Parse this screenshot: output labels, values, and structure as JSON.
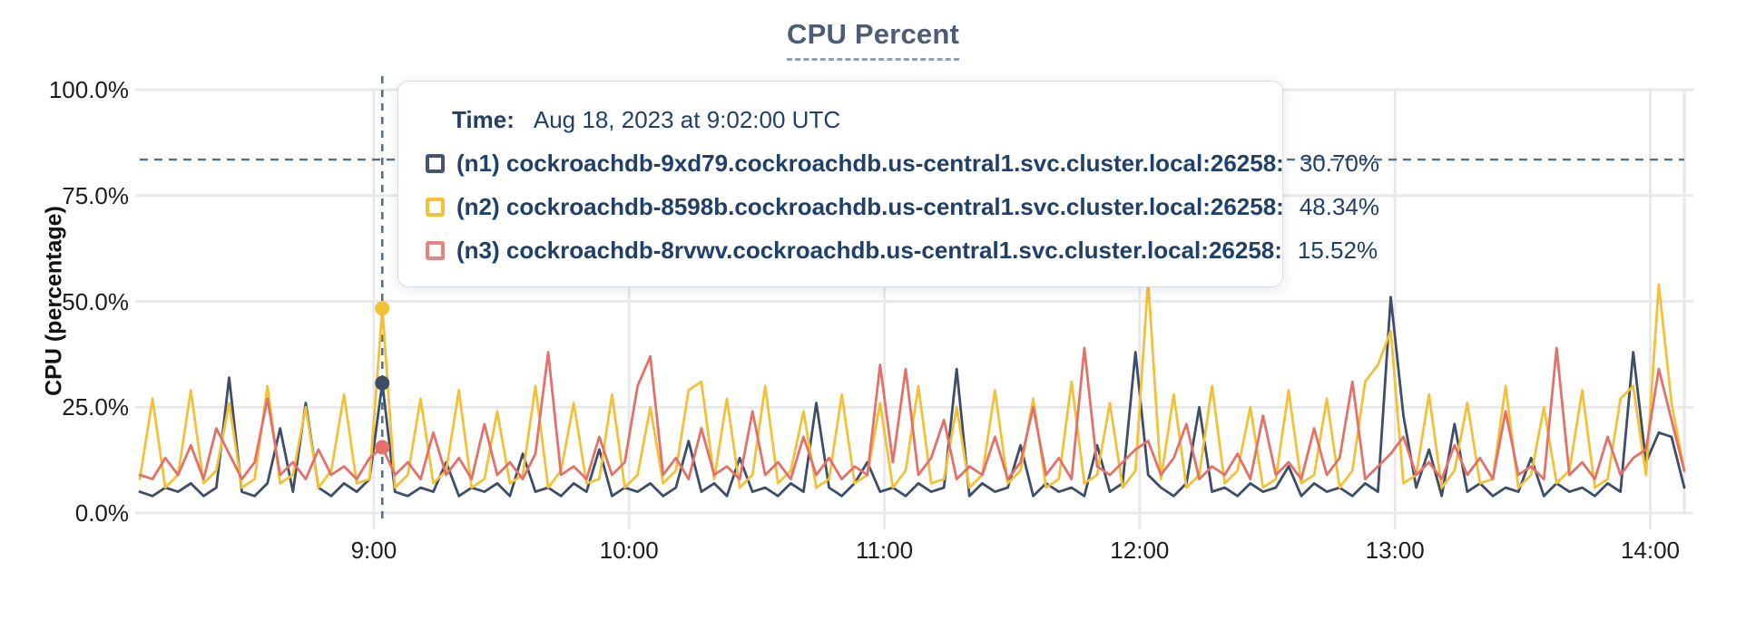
{
  "tooltip": {
    "time_label": "Time:",
    "time_value": "Aug 18, 2023 at 9:02:00 UTC"
  },
  "chart_data": {
    "type": "line",
    "title": "CPU Percent",
    "ylabel": "CPU (percentage)",
    "ylim": [
      0,
      100
    ],
    "grid": true,
    "legend_position": "tooltip-overlay",
    "grid_color": "#e8e9eb",
    "annotation_color": "#567087",
    "threshold_percent": 83.5,
    "x_start_min": 485,
    "x_step_min": 3,
    "cursor": {
      "time_min": 542,
      "time_text": "9:02:00"
    },
    "yticks": [
      {
        "value": 0,
        "label": "0.0%"
      },
      {
        "value": 25,
        "label": "25.0%"
      },
      {
        "value": 50,
        "label": "50.0%"
      },
      {
        "value": 75,
        "label": "75.0%"
      },
      {
        "value": 100,
        "label": "100.0%"
      }
    ],
    "xticks": [
      {
        "min": 540,
        "label": "9:00"
      },
      {
        "min": 600,
        "label": "10:00"
      },
      {
        "min": 660,
        "label": "11:00"
      },
      {
        "min": 720,
        "label": "12:00"
      },
      {
        "min": 780,
        "label": "13:00"
      },
      {
        "min": 840,
        "label": "14:00"
      }
    ],
    "series": [
      {
        "id": "n1",
        "color": "#3e4d68",
        "swatch_color": "#45546f",
        "legend_label": "(n1) cockroachdb-9xd79.cockroachdb.us-central1.svc.cluster.local:26258:",
        "cursor_value": 30.7,
        "cursor_value_label": "30.70%",
        "values": [
          5,
          4,
          6,
          5,
          7,
          4,
          6,
          32,
          5,
          4,
          7,
          20,
          5,
          26,
          6,
          4,
          7,
          5,
          8,
          30.7,
          5,
          4,
          6,
          5,
          12,
          4,
          6,
          5,
          7,
          4,
          14,
          5,
          6,
          4,
          7,
          5,
          15,
          4,
          6,
          5,
          7,
          4,
          6,
          17,
          5,
          7,
          4,
          13,
          5,
          6,
          4,
          7,
          5,
          26,
          6,
          4,
          7,
          12,
          5,
          6,
          4,
          7,
          5,
          6,
          34,
          4,
          7,
          5,
          6,
          16,
          4,
          7,
          5,
          6,
          4,
          16,
          5,
          7,
          38,
          9,
          6,
          4,
          7,
          25,
          5,
          6,
          4,
          7,
          5,
          6,
          11,
          4,
          7,
          5,
          6,
          4,
          7,
          5,
          51,
          23,
          6,
          15,
          4,
          21,
          5,
          7,
          4,
          6,
          5,
          13,
          4,
          7,
          5,
          6,
          4,
          7,
          5,
          38,
          12,
          19,
          18,
          6
        ]
      },
      {
        "id": "n2",
        "color": "#f2c138",
        "swatch_color": "#f2c233",
        "legend_label": "(n2) cockroachdb-8598b.cockroachdb.us-central1.svc.cluster.local:26258:",
        "cursor_value": 48.34,
        "cursor_value_label": "48.34%",
        "values": [
          8,
          27,
          6,
          9,
          29,
          7,
          10,
          26,
          6,
          8,
          30,
          7,
          9,
          25,
          6,
          10,
          28,
          7,
          8,
          48.34,
          6,
          9,
          27,
          7,
          10,
          29,
          6,
          8,
          24,
          7,
          9,
          30,
          6,
          10,
          26,
          7,
          8,
          28,
          6,
          9,
          25,
          7,
          10,
          29,
          31,
          8,
          27,
          6,
          9,
          30,
          7,
          10,
          24,
          6,
          8,
          28,
          7,
          9,
          26,
          6,
          10,
          30,
          7,
          8,
          25,
          6,
          9,
          29,
          7,
          10,
          27,
          6,
          8,
          31,
          7,
          9,
          26,
          6,
          10,
          55,
          8,
          28,
          6,
          9,
          30,
          7,
          10,
          25,
          6,
          8,
          29,
          7,
          9,
          27,
          6,
          10,
          31,
          35,
          43,
          7,
          9,
          28,
          6,
          10,
          26,
          7,
          8,
          30,
          6,
          9,
          25,
          7,
          10,
          29,
          6,
          8,
          27,
          30,
          9,
          54,
          26,
          10
        ]
      },
      {
        "id": "n3",
        "color": "#e3716a",
        "swatch_color": "#e5837e",
        "legend_label": "(n3) cockroachdb-8rvwv.cockroachdb.us-central1.svc.cluster.local:26258:",
        "cursor_value": 15.52,
        "cursor_value_label": "15.52%",
        "values": [
          9,
          8,
          13,
          9,
          16,
          8,
          20,
          14,
          8,
          12,
          27,
          9,
          12,
          8,
          15,
          9,
          11,
          8,
          13,
          15.52,
          9,
          12,
          8,
          19,
          9,
          13,
          8,
          21,
          9,
          12,
          8,
          14,
          38,
          9,
          11,
          8,
          18,
          9,
          12,
          30,
          37,
          9,
          13,
          8,
          20,
          9,
          11,
          8,
          24,
          9,
          12,
          8,
          18,
          9,
          13,
          8,
          11,
          9,
          35,
          12,
          34,
          9,
          13,
          22,
          8,
          11,
          9,
          18,
          8,
          12,
          25,
          9,
          13,
          8,
          39,
          11,
          9,
          12,
          15,
          17,
          9,
          13,
          21,
          8,
          11,
          9,
          14,
          8,
          23,
          9,
          12,
          8,
          20,
          9,
          13,
          31,
          8,
          11,
          14,
          18,
          9,
          12,
          8,
          16,
          9,
          13,
          8,
          24,
          9,
          11,
          8,
          39,
          9,
          12,
          8,
          18,
          9,
          13,
          15,
          34,
          22,
          10
        ]
      }
    ]
  }
}
